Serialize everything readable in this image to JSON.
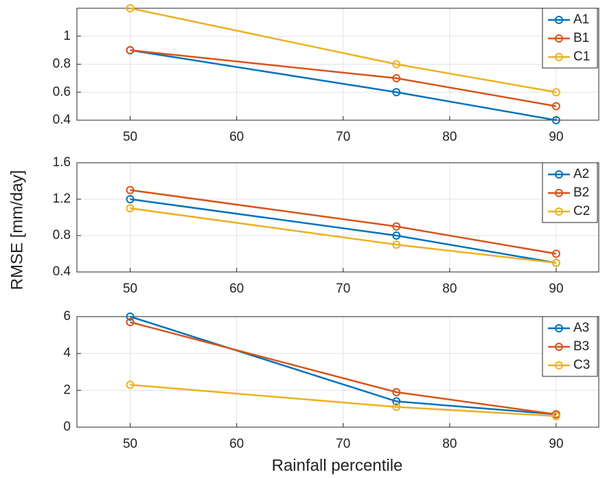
{
  "ylabel": "RMSE [mm/day]",
  "xlabel": "Rainfall percentile",
  "chart_data": [
    {
      "type": "line",
      "x": [
        50,
        75,
        90
      ],
      "xlim": [
        45,
        94
      ],
      "xticks": [
        50,
        60,
        70,
        80,
        90
      ],
      "ylim": [
        0.4,
        1.2
      ],
      "yticks": [
        0.4,
        0.6,
        0.8,
        1
      ],
      "grid": true,
      "legend": "top-right",
      "series": [
        {
          "name": "A1",
          "color": "#0072BD",
          "values": [
            0.9,
            0.6,
            0.4
          ]
        },
        {
          "name": "B1",
          "color": "#D95319",
          "values": [
            0.9,
            0.7,
            0.5
          ]
        },
        {
          "name": "C1",
          "color": "#EDB120",
          "values": [
            1.2,
            0.8,
            0.6
          ]
        }
      ]
    },
    {
      "type": "line",
      "x": [
        50,
        75,
        90
      ],
      "xlim": [
        45,
        94
      ],
      "xticks": [
        50,
        60,
        70,
        80,
        90
      ],
      "ylim": [
        0.4,
        1.6
      ],
      "yticks": [
        0.4,
        0.8,
        1.2,
        1.6
      ],
      "grid": true,
      "legend": "top-right",
      "series": [
        {
          "name": "A2",
          "color": "#0072BD",
          "values": [
            1.2,
            0.8,
            0.5
          ]
        },
        {
          "name": "B2",
          "color": "#D95319",
          "values": [
            1.3,
            0.9,
            0.6
          ]
        },
        {
          "name": "C2",
          "color": "#EDB120",
          "values": [
            1.1,
            0.7,
            0.5
          ]
        }
      ]
    },
    {
      "type": "line",
      "x": [
        50,
        75,
        90
      ],
      "xlim": [
        45,
        94
      ],
      "xticks": [
        50,
        60,
        70,
        80,
        90
      ],
      "ylim": [
        0,
        6
      ],
      "yticks": [
        0,
        2,
        4,
        6
      ],
      "grid": true,
      "legend": "top-right",
      "series": [
        {
          "name": "A3",
          "color": "#0072BD",
          "values": [
            6,
            1.4,
            0.7
          ]
        },
        {
          "name": "B3",
          "color": "#D95319",
          "values": [
            5.7,
            1.9,
            0.7
          ]
        },
        {
          "name": "C3",
          "color": "#EDB120",
          "values": [
            2.3,
            1.1,
            0.6
          ]
        }
      ]
    }
  ]
}
